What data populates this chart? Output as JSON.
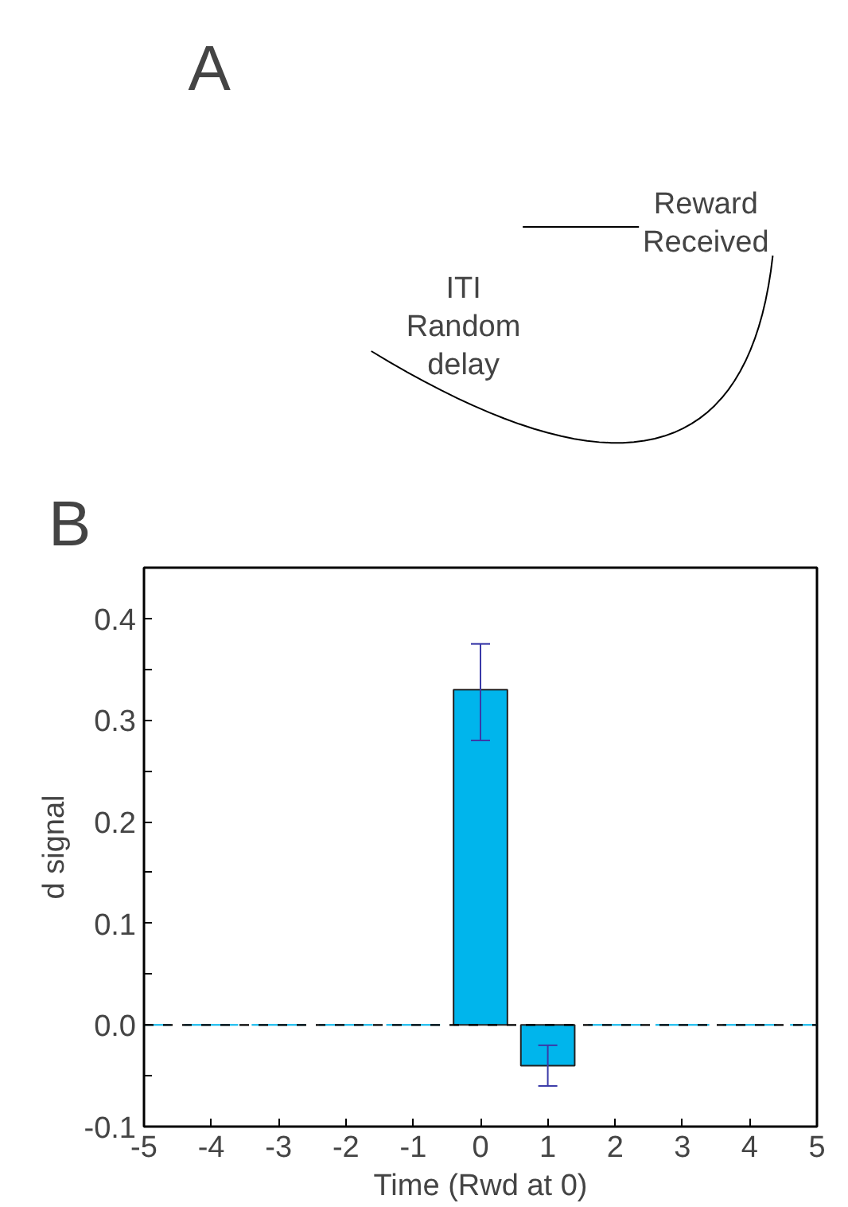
{
  "chart_data": [
    {
      "type": "other",
      "title": "A",
      "annotations": [
        "ITI\nRandom\ndelay",
        "Reward\nReceived"
      ]
    },
    {
      "type": "bar",
      "title": "B",
      "xlabel": "Time (Rwd at 0)",
      "ylabel": "d signal",
      "x": [
        -5,
        -4,
        -3,
        -2,
        -1,
        0,
        1,
        2,
        3,
        4,
        5
      ],
      "values": [
        0,
        0,
        0,
        0,
        0,
        0.33,
        -0.04,
        0,
        0,
        0,
        0
      ],
      "errors": [
        null,
        null,
        null,
        null,
        null,
        [
          0.28,
          0.375
        ],
        [
          -0.06,
          -0.02
        ],
        null,
        null,
        null,
        null
      ],
      "color": "#00b5ec",
      "xlim": [
        -5,
        5
      ],
      "xticks": [
        -5,
        -4,
        -3,
        -2,
        -1,
        0,
        1,
        2,
        3,
        4,
        5
      ],
      "ylim": [
        -0.1,
        0.45
      ],
      "yticks": [
        -0.1,
        {
          "value": -0.05,
          "label": null
        },
        {
          "value": 0,
          "label": "0.0"
        },
        {
          "value": 0.05,
          "label": null
        },
        0.1,
        {
          "value": 0.15,
          "label": null
        },
        0.2,
        {
          "value": 0.25,
          "label": null
        },
        0.3,
        {
          "value": 0.35,
          "label": null
        },
        0.4
      ],
      "ref_lines": [
        {
          "axis": "y",
          "value": 0,
          "label": null,
          "color": "#000000",
          "line_style": "dashed"
        }
      ],
      "grid": false
    }
  ]
}
